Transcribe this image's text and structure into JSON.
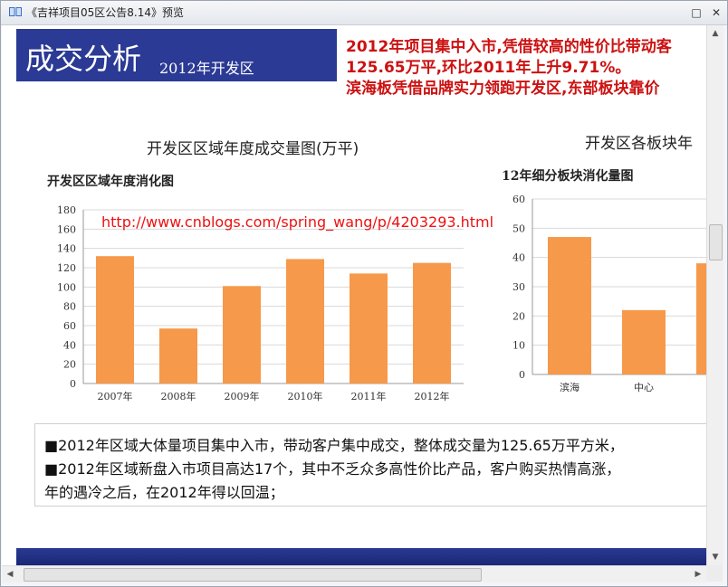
{
  "window": {
    "title": "《吉祥项目05区公告8.14》预览",
    "minimize_label": "□",
    "close_label": "✕"
  },
  "slide": {
    "title": "成交分析",
    "subtitle": "2012年开发区",
    "summary_lines": [
      "2012年项目集中入市,凭借较高的性价比带动客",
      "125.65万平,环比2011年上升9.71%。",
      "滨海板凭借品牌实力领跑开发区,东部板块靠价"
    ],
    "watermark": "http://www.cnblogs.com/spring_wang/p/4203293.html",
    "body_lines": [
      "■2012年区域大体量项目集中入市，带动客户集中成交，整体成交量为125.65万平方米，",
      "■2012年区域新盘入市项目高达17个，其中不乏众多高性价比产品，客户购买热情高涨，",
      "年的遇冷之后，在2012年得以回温；"
    ]
  },
  "chart_data": [
    {
      "type": "bar",
      "caption": "开发区区域年度成交量图(万平)",
      "title": "开发区区域年度消化图",
      "categories": [
        "2007年",
        "2008年",
        "2009年",
        "2010年",
        "2011年",
        "2012年"
      ],
      "values": [
        132,
        57,
        101,
        129,
        114,
        125
      ],
      "ylim": [
        0,
        180
      ],
      "yticks": [
        "0",
        "20",
        "40",
        "60",
        "80",
        "100",
        "120",
        "140",
        "160",
        "180"
      ],
      "grid": true,
      "color": "#f6994a"
    },
    {
      "type": "bar",
      "caption": "开发区各板块年",
      "title": "12年细分板块消化量图",
      "categories": [
        "滨海",
        "中心",
        ""
      ],
      "values": [
        47,
        22,
        38
      ],
      "ylim": [
        0,
        60
      ],
      "yticks": [
        "0",
        "10",
        "20",
        "30",
        "40",
        "50",
        "60"
      ],
      "grid": true,
      "color": "#f6994a"
    }
  ],
  "colors": {
    "header_bg": "#2b3a94",
    "accent_red": "#cc1111",
    "bar": "#f6994a"
  }
}
